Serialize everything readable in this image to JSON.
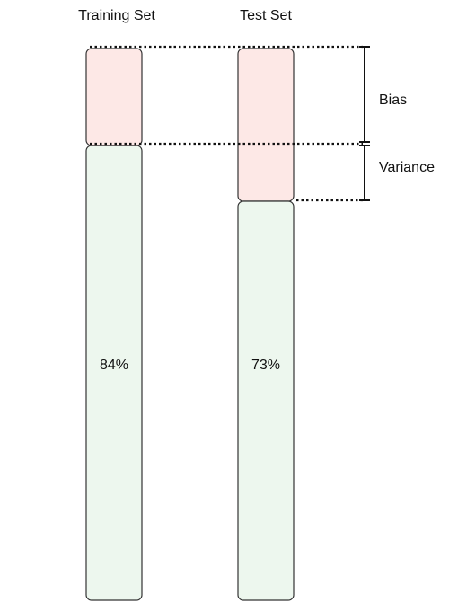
{
  "columns": [
    {
      "label": "Training Set",
      "accuracy": 84,
      "accuracy_label": "84%"
    },
    {
      "label": "Test Set",
      "accuracy": 73,
      "accuracy_label": "73%"
    }
  ],
  "brackets": {
    "bias_label": "Bias",
    "variance_label": "Variance"
  },
  "colors": {
    "error": "#fde8e6",
    "correct": "#edf7ee",
    "outline": "#333333",
    "guide": "#111111"
  }
}
